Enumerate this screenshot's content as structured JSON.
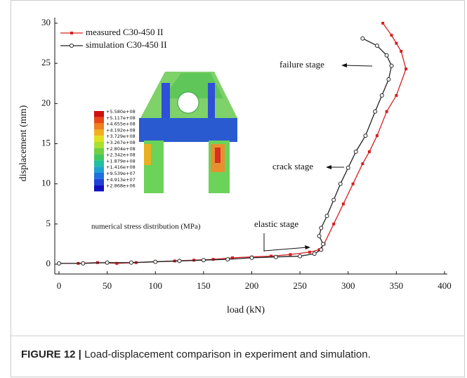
{
  "chart_data": {
    "type": "line",
    "xlabel": "load (kN)",
    "ylabel": "displacement (mm)",
    "xlim": [
      0,
      400
    ],
    "xticks": [
      0,
      50,
      100,
      150,
      200,
      250,
      300,
      350,
      400
    ],
    "ylim": [
      0,
      30
    ],
    "yticks": [
      0,
      5,
      10,
      15,
      20,
      25,
      30
    ],
    "legend": "upper left",
    "series": [
      {
        "name": "measured C30-450 II",
        "color": "#d42020",
        "marker": "square",
        "x": [
          0,
          20,
          40,
          60,
          80,
          100,
          120,
          140,
          160,
          180,
          200,
          220,
          240,
          260,
          270,
          275,
          285,
          295,
          305,
          315,
          322,
          330,
          340,
          350,
          360,
          355,
          350,
          345,
          336
        ],
        "values": [
          0.1,
          0.1,
          0.2,
          0.1,
          0.2,
          0.3,
          0.4,
          0.5,
          0.6,
          0.8,
          0.9,
          1.0,
          1.2,
          1.5,
          1.8,
          2.5,
          5,
          7.5,
          10,
          12.5,
          14,
          16,
          19,
          21,
          24.3,
          26.5,
          27.5,
          28.5,
          30
        ]
      },
      {
        "name": "simulation C30-450 II",
        "color": "#222222",
        "marker": "circle",
        "x": [
          0,
          25,
          50,
          75,
          100,
          125,
          150,
          175,
          200,
          225,
          250,
          265,
          272,
          274,
          270,
          272,
          278,
          285,
          292,
          300,
          308,
          318,
          328,
          335,
          342,
          345,
          340,
          330,
          315
        ],
        "values": [
          0.1,
          0.1,
          0.2,
          0.2,
          0.3,
          0.4,
          0.5,
          0.6,
          0.8,
          0.9,
          1.0,
          1.3,
          1.8,
          2.5,
          3.5,
          4.5,
          6,
          8,
          10,
          12,
          14,
          16,
          19,
          21,
          23,
          24.7,
          26,
          27.2,
          28.1
        ]
      }
    ],
    "annotations": [
      "failure stage",
      "crack stage",
      "elastic stage",
      "numerical  stress distribution (MPa)"
    ]
  },
  "inset": {
    "colorbar_labels": [
      "+5.580e+08",
      "+5.117e+08",
      "+4.655e+08",
      "+4.192e+08",
      "+3.729e+08",
      "+3.267e+08",
      "+2.804e+08",
      "+2.342e+08",
      "+1.879e+08",
      "+1.416e+08",
      "+9.539e+07",
      "+4.913e+07",
      "+2.868e+06"
    ]
  },
  "caption": {
    "label": "FIGURE 12 |",
    "text": "Load-displacement comparison in experiment and simulation."
  }
}
